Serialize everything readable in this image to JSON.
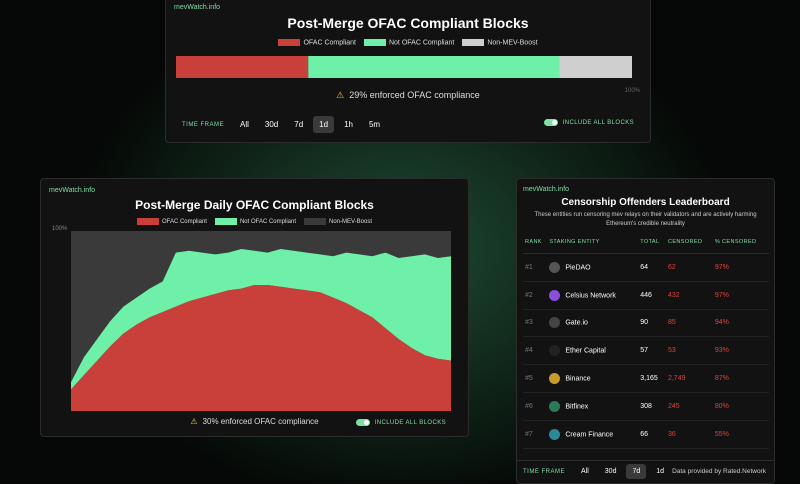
{
  "panel1": {
    "brand": "mevWatch.info",
    "title": "Post-Merge OFAC Compliant Blocks",
    "series": [
      {
        "name": "OFAC Compliant",
        "color": "#c9403b"
      },
      {
        "name": "Not OFAC Compliant",
        "color": "#6ef0a8"
      },
      {
        "name": "Non-MEV-Boost",
        "color": "#cfcfcf"
      }
    ],
    "values": [
      29,
      55,
      16
    ],
    "axis_label": "100%",
    "note": "29% enforced OFAC compliance",
    "timeframe_label": "TIME FRAME",
    "timeframes": [
      "All",
      "30d",
      "7d",
      "1d",
      "1h",
      "5m"
    ],
    "selected_index": 3,
    "toggle_label": "INCLUDE ALL BLOCKS"
  },
  "panel2": {
    "brand": "mevWatch.info",
    "title": "Post-Merge Daily OFAC Compliant Blocks",
    "series": [
      {
        "name": "OFAC Compliant",
        "color": "#c9403b",
        "values": [
          12,
          20,
          28,
          36,
          43,
          48,
          52,
          55,
          58,
          61,
          63,
          65,
          67,
          68,
          70,
          70,
          69,
          68,
          67,
          66,
          63,
          60,
          56,
          52,
          46,
          40,
          35,
          31,
          29,
          28
        ]
      },
      {
        "name": "Not OFAC Compliant",
        "color": "#6ef0a8",
        "values": [
          4,
          10,
          12,
          14,
          15,
          15,
          16,
          17,
          30,
          28,
          25,
          22,
          21,
          22,
          19,
          18,
          21,
          21,
          21,
          21,
          23,
          28,
          31,
          34,
          42,
          45,
          51,
          56,
          56,
          58
        ]
      },
      {
        "name": "Non-MEV-Boost",
        "color": "#3a3a3a"
      }
    ],
    "axis_label": "100%",
    "note": "30% enforced OFAC compliance",
    "toggle_label": "INCLUDE ALL BLOCKS"
  },
  "panel3": {
    "brand": "mevWatch.info",
    "title": "Censorship Offenders Leaderboard",
    "subtitle": "These entities run censoring mev relays on their validators and are actively harming Ethereum's credible neutrality",
    "headers": [
      "RANK",
      "STAKING ENTITY",
      "TOTAL",
      "CENSORED",
      "% CENSORED"
    ],
    "rows": [
      [
        "#1",
        "PieDAO",
        "64",
        "62",
        "97%"
      ],
      [
        "#2",
        "Celsius Network",
        "446",
        "432",
        "97%"
      ],
      [
        "#3",
        "Gate.io",
        "90",
        "85",
        "94%"
      ],
      [
        "#4",
        "Ether Capital",
        "57",
        "53",
        "93%"
      ],
      [
        "#5",
        "Binance",
        "3,165",
        "2,749",
        "87%"
      ],
      [
        "#6",
        "Bitfinex",
        "308",
        "245",
        "80%"
      ],
      [
        "#7",
        "Cream Finance",
        "66",
        "36",
        "55%"
      ]
    ],
    "timeframe_label": "TIME FRAME",
    "timeframes": [
      "All",
      "30d",
      "7d",
      "1d"
    ],
    "selected_index": 2,
    "credit": "Data provided by Rated.Network"
  }
}
